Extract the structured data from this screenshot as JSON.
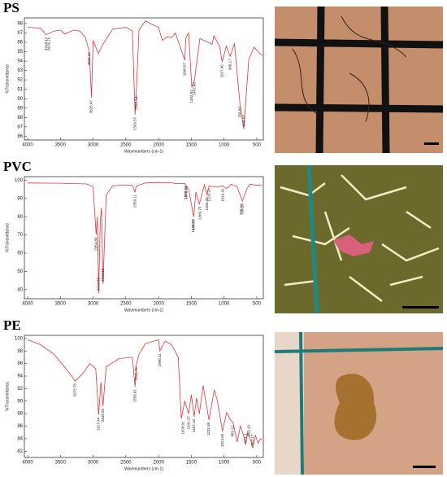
{
  "chart_data": [
    {
      "type": "line",
      "panel_label": "PS",
      "x_label": "Wavenumbers (cm-1)",
      "y_label": "%Transmittance",
      "color": "#e0353a",
      "xlim": [
        4050,
        400
      ],
      "xticks": [
        4000,
        3500,
        3000,
        2500,
        2000,
        1500,
        1000,
        500
      ],
      "ylim": [
        85.6,
        98.6
      ],
      "yticks": [
        86,
        87,
        88,
        89,
        90,
        91,
        92,
        93,
        94,
        95,
        96,
        97,
        98
      ],
      "x": [
        4000,
        3800,
        3720,
        3600,
        3500,
        3430,
        3300,
        3200,
        3120,
        3082,
        3060,
        3025,
        3000,
        2920,
        2849,
        2700,
        2500,
        2400,
        2359,
        2342,
        2300,
        2200,
        2100,
        2000,
        1943,
        1870,
        1801,
        1745,
        1601,
        1583,
        1541,
        1493,
        1452,
        1370,
        1181,
        1155,
        1069,
        1028,
        965,
        906,
        841,
        756,
        698,
        622,
        540,
        480,
        420
      ],
      "values": [
        97.6,
        97.5,
        96.8,
        97.2,
        97.3,
        96.9,
        97.3,
        97.2,
        96.5,
        95.6,
        95.2,
        90.1,
        96.2,
        94.8,
        95.8,
        97.4,
        97.6,
        97.2,
        88.3,
        90.5,
        97.3,
        98.3,
        97.9,
        97.6,
        96.2,
        96.6,
        96.5,
        97.0,
        94.1,
        96.5,
        97.0,
        91.2,
        92.0,
        96.4,
        95.8,
        96.7,
        95.6,
        93.9,
        95.6,
        94.5,
        95.9,
        89.4,
        86.8,
        94.2,
        95.5,
        95.0,
        94.6
      ],
      "peaks": [
        3718.17,
        3676.75,
        3059.24,
        3025.67,
        2359.57,
        2342.14,
        1600.97,
        1492.82,
        1452.68,
        1027.96,
        906.17,
        756.82,
        696.63
      ]
    },
    {
      "type": "line",
      "panel_label": "PVC",
      "x_label": "Wavenumbers (cm-1)",
      "y_label": "%Transmittance",
      "color": "#e0353a",
      "xlim": [
        4050,
        400
      ],
      "xticks": [
        4000,
        3500,
        3000,
        2500,
        2000,
        1500,
        1000,
        500
      ],
      "ylim": [
        35,
        102
      ],
      "yticks": [
        40,
        50,
        60,
        70,
        80,
        90,
        100
      ],
      "x": [
        4000,
        3500,
        3100,
        3000,
        2954,
        2935,
        2915,
        2890,
        2870,
        2849,
        2800,
        2700,
        2500,
        2400,
        2359,
        2340,
        2200,
        2000,
        1800,
        1740,
        1600,
        1540,
        1464,
        1430,
        1377,
        1300,
        1260,
        1230,
        1100,
        1030,
        960,
        890,
        800,
        720,
        650,
        600,
        500,
        420
      ],
      "values": [
        98.5,
        98.4,
        98.0,
        96.5,
        70,
        80,
        38,
        78,
        85,
        43,
        92,
        97,
        97.5,
        97.2,
        93.5,
        96.8,
        98.5,
        98.8,
        98.6,
        98.3,
        98.2,
        95.0,
        80.0,
        93.5,
        87.0,
        97.5,
        92.0,
        96.8,
        96.2,
        97.0,
        95.5,
        97.8,
        96.5,
        88.5,
        95.5,
        97.8,
        97.2,
        97.5
      ],
      "peaks": [
        2954.86,
        2913.33,
        2849.42,
        2359.11,
        1583.51,
        1576.09,
        1472.92,
        1463.3,
        1366.75,
        1260.35,
        1229.22,
        1014.91,
        730.05,
        719.23
      ]
    },
    {
      "type": "line",
      "panel_label": "PE",
      "x_label": "Wavenumbers (cm-1)",
      "y_label": "%Transmittance",
      "color": "#e0353a",
      "xlim": [
        4050,
        400
      ],
      "xticks": [
        4000,
        3500,
        3000,
        2500,
        2000,
        1500,
        1000,
        500
      ],
      "ylim": [
        81,
        100.5
      ],
      "yticks": [
        82,
        84,
        86,
        88,
        90,
        92,
        94,
        96,
        98,
        100
      ],
      "x": [
        4000,
        3800,
        3600,
        3400,
        3273,
        3150,
        3050,
        2960,
        2917,
        2880,
        2849,
        2800,
        2600,
        2400,
        2359,
        2341,
        2300,
        2200,
        2100,
        2000,
        1980,
        1900,
        1800,
        1700,
        1653,
        1600,
        1541,
        1500,
        1457,
        1420,
        1377,
        1320,
        1231,
        1150,
        1100,
        1024,
        960,
        900,
        860,
        800,
        750,
        700,
        669,
        640,
        600,
        560,
        520,
        480,
        440,
        420
      ],
      "values": [
        99.8,
        99.0,
        97.5,
        95.0,
        93.2,
        94.5,
        96.0,
        95.2,
        87.8,
        93,
        89.2,
        95.5,
        96.8,
        97.0,
        92.3,
        95.8,
        97.5,
        99.2,
        99.5,
        99.8,
        98.0,
        99.6,
        99.0,
        97.0,
        87.2,
        90.0,
        88.0,
        91.0,
        87.5,
        90.5,
        88.0,
        92.5,
        87.0,
        91.8,
        90.0,
        85.2,
        88.2,
        87.0,
        86.5,
        83.5,
        86.0,
        84.5,
        83.0,
        85.0,
        84.0,
        82.5,
        84.5,
        83.3,
        84.0,
        83.8
      ],
      "peaks": [
        3273.76,
        2917.44,
        2849.26,
        2359.61,
        2341.76,
        1980.41,
        1628.01,
        1541.27,
        1457.16,
        1231.89,
        1024.65,
        869.12,
        671.1,
        619.19,
        563.17
      ]
    }
  ]
}
